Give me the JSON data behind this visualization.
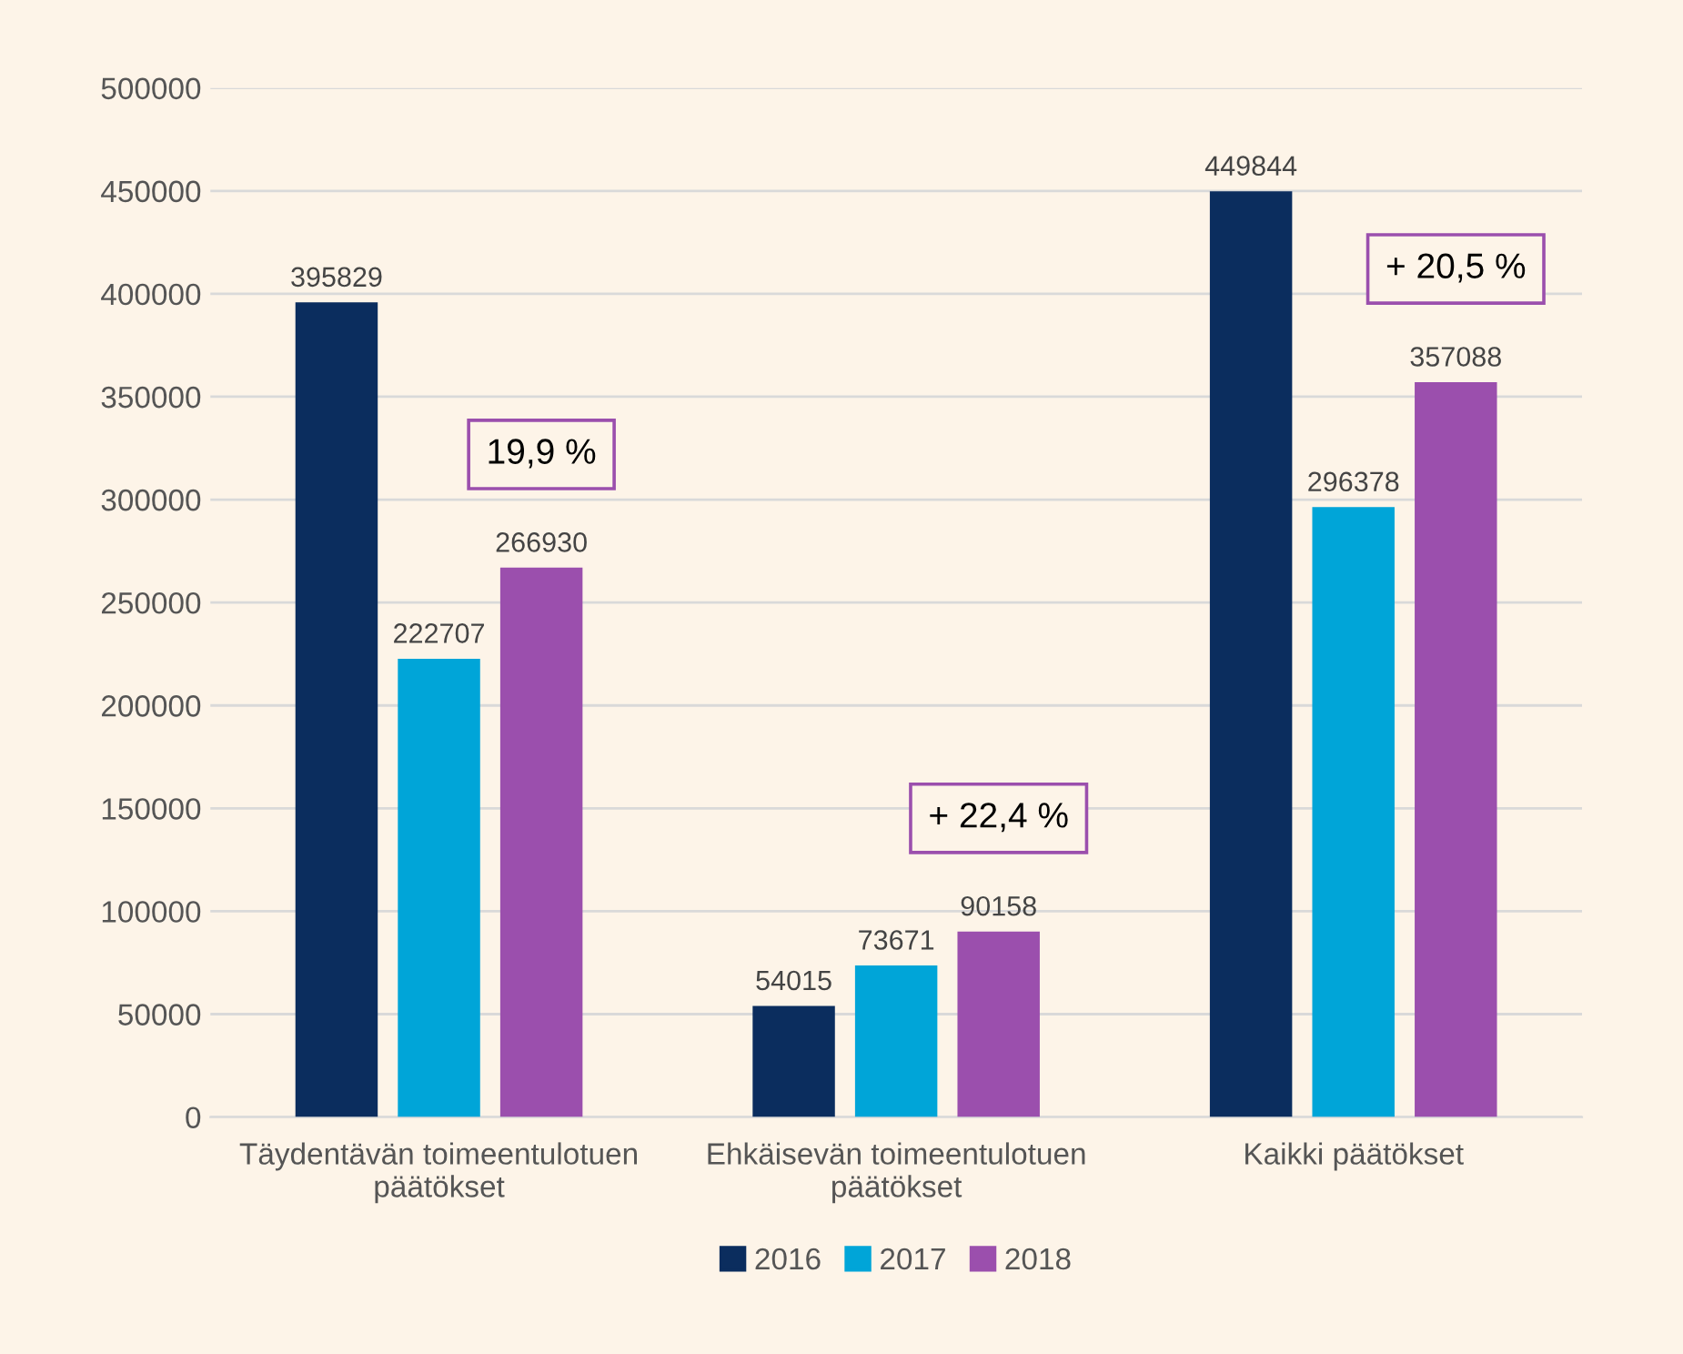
{
  "chart_data": {
    "type": "bar",
    "categories": [
      "Täydentävän toimeentulotuen päätökset",
      "Ehkäisevän toimeentulotuen päätökset",
      "Kaikki päätökset"
    ],
    "series": [
      {
        "name": "2016",
        "color": "#0b2d5e",
        "values": [
          395829,
          54015,
          449844
        ]
      },
      {
        "name": "2017",
        "color": "#00a5d8",
        "values": [
          222707,
          73671,
          296378
        ]
      },
      {
        "name": "2018",
        "color": "#9b4fad",
        "values": [
          266930,
          90158,
          357088
        ]
      }
    ],
    "ylim": [
      0,
      500000
    ],
    "yticks": [
      0,
      50000,
      100000,
      150000,
      200000,
      250000,
      300000,
      350000,
      400000,
      450000,
      500000
    ],
    "grid": "y",
    "legend": "bottom",
    "data_labels": true,
    "annotations": [
      "19,9 %",
      "+ 22,4 %",
      "+ 20,5 %"
    ]
  }
}
